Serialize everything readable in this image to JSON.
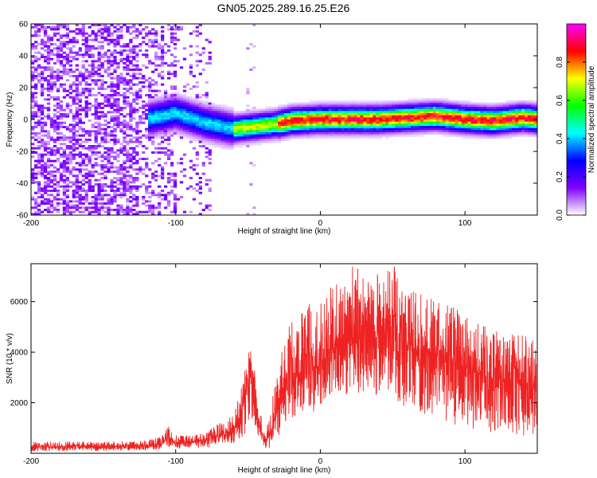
{
  "title": "GN05.2025.289.16.25.E26",
  "chart_data": [
    {
      "type": "heatmap",
      "xlabel": "Height of straight line (km)",
      "ylabel": "Frequency (Hz)",
      "xlim": [
        -200,
        150
      ],
      "ylim": [
        -60,
        60
      ],
      "xticks": [
        -200,
        -100,
        0,
        100
      ],
      "yticks": [
        -60,
        -40,
        -20,
        0,
        20,
        40,
        60
      ],
      "colorbar": {
        "label": "Normalized spectral amplitude",
        "range": [
          0.0,
          1.0
        ],
        "ticks": [
          0.0,
          0.2,
          0.4,
          0.6,
          0.8
        ],
        "colormap": [
          "#ffffff",
          "#7f00ff",
          "#0000ff",
          "#00ffff",
          "#00ff00",
          "#ffff00",
          "#ff0000",
          "#ff00ff"
        ]
      },
      "features": {
        "noise_region_x": [
          -200,
          -75
        ],
        "signal_start_x": -120,
        "ridge": {
          "x": [
            -120,
            -100,
            -80,
            -70,
            -60,
            -50,
            -40,
            -30,
            -20,
            0,
            20,
            40,
            60,
            80,
            100,
            120,
            130,
            140,
            150
          ],
          "y": [
            0,
            4,
            -2,
            -4,
            -6,
            -5,
            -4,
            -3,
            -1,
            0,
            0,
            0,
            1,
            2,
            0,
            -1,
            0,
            1,
            0
          ],
          "peak_amplitude": 0.95
        }
      }
    },
    {
      "type": "line",
      "xlabel": "Height of straight line (km)",
      "ylabel": "SNR (10 * v/v)",
      "xlim": [
        -200,
        150
      ],
      "ylim": [
        0,
        7500
      ],
      "xticks": [
        -200,
        -100,
        0,
        100
      ],
      "yticks": [
        2000,
        4000,
        6000
      ],
      "series": [
        {
          "color": "#ee2222",
          "x": [
            -200,
            -190,
            -180,
            -170,
            -160,
            -150,
            -140,
            -130,
            -120,
            -110,
            -105,
            -100,
            -90,
            -80,
            -70,
            -60,
            -55,
            -50,
            -48,
            -45,
            -42,
            -40,
            -38,
            -35,
            -33,
            -30,
            -27,
            -25,
            -20,
            -15,
            -10,
            -5,
            0,
            5,
            10,
            15,
            20,
            25,
            30,
            35,
            40,
            45,
            50,
            55,
            60,
            65,
            70,
            75,
            80,
            85,
            90,
            95,
            100,
            105,
            110,
            115,
            120,
            125,
            130,
            135,
            140,
            145,
            150
          ],
          "y": [
            250,
            260,
            240,
            270,
            250,
            260,
            270,
            280,
            300,
            350,
            700,
            400,
            450,
            500,
            700,
            900,
            1500,
            2600,
            3500,
            2200,
            1200,
            700,
            400,
            700,
            1200,
            1600,
            2100,
            2400,
            2900,
            3100,
            3200,
            3300,
            3500,
            3900,
            4200,
            4300,
            4500,
            4600,
            4650,
            4600,
            4600,
            4500,
            4400,
            4300,
            4200,
            4100,
            4050,
            3950,
            3900,
            3800,
            3700,
            3550,
            3400,
            3250,
            3150,
            3050,
            2950,
            2900,
            2850,
            2800,
            2700,
            2600,
            2500
          ],
          "envelope_max": [
            450,
            450,
            450,
            460,
            460,
            460,
            470,
            480,
            500,
            650,
            1100,
            700,
            700,
            800,
            1200,
            1500,
            2500,
            3900,
            4200,
            3200,
            1900,
            1200,
            900,
            1400,
            2300,
            3000,
            3900,
            4800,
            5200,
            5500,
            5800,
            6200,
            6100,
            6300,
            6900,
            7200,
            7500,
            7400,
            7300,
            7300,
            7100,
            7200,
            7500,
            7000,
            6600,
            6400,
            6300,
            6200,
            6000,
            5900,
            5900,
            5800,
            5500,
            5300,
            5100,
            5000,
            4900,
            4700,
            4600,
            4800,
            5000,
            4600,
            4200
          ],
          "envelope_min": [
            100,
            100,
            100,
            110,
            110,
            110,
            120,
            120,
            130,
            150,
            200,
            200,
            200,
            200,
            300,
            400,
            600,
            900,
            1200,
            900,
            500,
            300,
            150,
            200,
            400,
            600,
            900,
            1200,
            1300,
            1500,
            1600,
            1500,
            1700,
            1900,
            2100,
            2200,
            2300,
            2400,
            2400,
            2300,
            2200,
            2100,
            2000,
            1900,
            1800,
            1700,
            1600,
            1500,
            1400,
            1300,
            1200,
            1100,
            1000,
            950,
            900,
            850,
            800,
            750,
            700,
            700,
            700,
            700,
            700
          ]
        }
      ]
    }
  ]
}
